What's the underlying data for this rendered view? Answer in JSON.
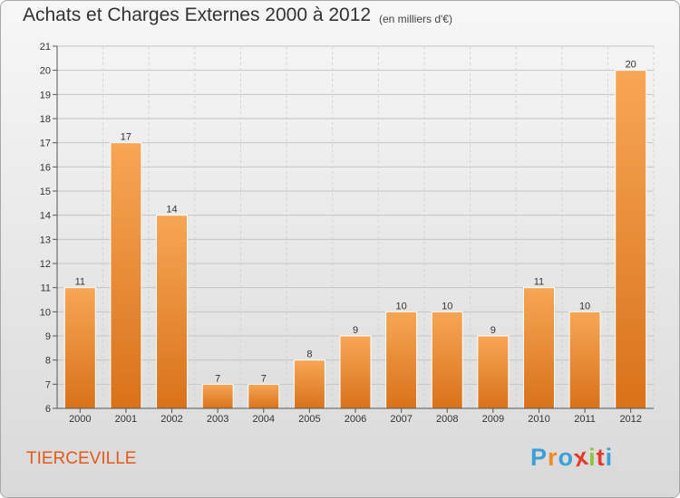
{
  "header": {
    "title": "Achats et Charges Externes 2000 à 2012",
    "subtitle": "(en milliers d'€)"
  },
  "footer": {
    "town": "TIERCEVILLE",
    "logo_letters": [
      "P",
      "r",
      "o",
      "x",
      "i",
      "t",
      "i"
    ],
    "logo_colors": [
      "#3aa0d8",
      "#f08a24",
      "#3aa0d8",
      "#e53a2e",
      "#8cc63f",
      "#e53a2e",
      "#3aa0d8"
    ]
  },
  "chart_data": {
    "type": "bar",
    "categories": [
      "2000",
      "2001",
      "2002",
      "2003",
      "2004",
      "2005",
      "2006",
      "2007",
      "2008",
      "2009",
      "2010",
      "2011",
      "2012"
    ],
    "values": [
      11,
      17,
      14,
      7,
      7,
      8,
      9,
      10,
      10,
      9,
      11,
      10,
      20
    ],
    "data_labels": [
      "11",
      "17",
      "14",
      "7",
      "7",
      "8",
      "9",
      "10",
      "10",
      "9",
      "11",
      "10",
      "20"
    ],
    "ylim": [
      6,
      21
    ],
    "yticks": [
      6,
      7,
      8,
      9,
      10,
      11,
      12,
      13,
      14,
      15,
      16,
      17,
      18,
      19,
      20,
      21
    ],
    "grid": true,
    "bar_color_top": "#f7a655",
    "bar_color_bottom": "#d9721a",
    "title": "Achats et Charges Externes 2000 à 2012",
    "xlabel": "",
    "ylabel": ""
  }
}
